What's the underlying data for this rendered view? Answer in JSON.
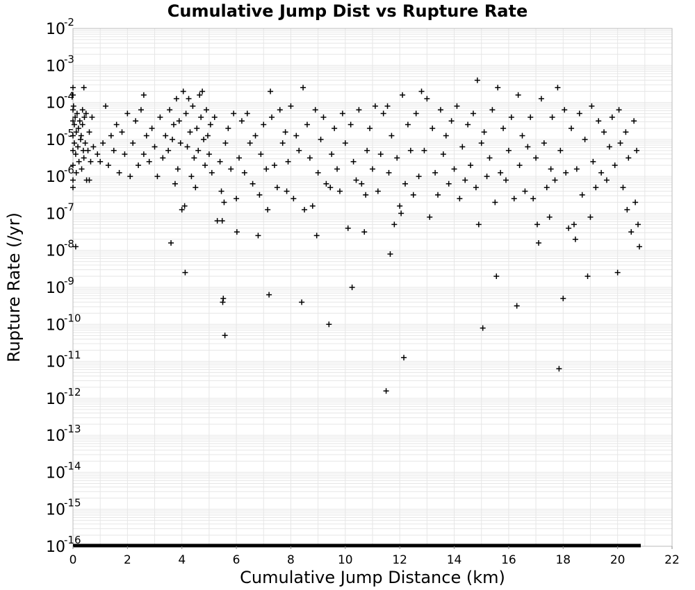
{
  "chart_data": {
    "type": "scatter",
    "title": "Cumulative Jump Dist vs Rupture Rate",
    "xlabel": "Cumulative Jump Distance (km)",
    "ylabel": "Rupture Rate (/yr)",
    "xlim": [
      0,
      22
    ],
    "ylim_log10": [
      -16,
      -2
    ],
    "y_scale": "log",
    "grid": true,
    "legend": "none",
    "marker": "plus",
    "marker_color": "#000000",
    "grid_color": "#e6e6e6",
    "x_ticks": [
      "0",
      "2",
      "4",
      "6",
      "8",
      "10",
      "12",
      "14",
      "16",
      "18",
      "20",
      "22"
    ],
    "y_ticks": [
      {
        "base": "10",
        "exp": "-2"
      },
      {
        "base": "10",
        "exp": "-3"
      },
      {
        "base": "10",
        "exp": "-4"
      },
      {
        "base": "10",
        "exp": "-5"
      },
      {
        "base": "10",
        "exp": "-6"
      },
      {
        "base": "10",
        "exp": "-7"
      },
      {
        "base": "10",
        "exp": "-8"
      },
      {
        "base": "10",
        "exp": "-9"
      },
      {
        "base": "10",
        "exp": "-10"
      },
      {
        "base": "10",
        "exp": "-11"
      },
      {
        "base": "10",
        "exp": "-12"
      },
      {
        "base": "10",
        "exp": "-13"
      },
      {
        "base": "10",
        "exp": "-14"
      },
      {
        "base": "10",
        "exp": "-15"
      },
      {
        "base": "10",
        "exp": "-16"
      }
    ],
    "floor_series": {
      "x_range": [
        0,
        20.8
      ],
      "log10_y": -16,
      "note_type": "dense zero-rate points"
    },
    "points": [
      [
        0.0,
        -3.6
      ],
      [
        0.0,
        -3.8
      ],
      [
        0.0,
        -4.2
      ],
      [
        0.0,
        -4.5
      ],
      [
        0.0,
        -4.9
      ],
      [
        0.0,
        -5.3
      ],
      [
        0.0,
        -5.7
      ],
      [
        0.0,
        -6.1
      ],
      [
        0.0,
        -6.3
      ],
      [
        0.02,
        -4.1
      ],
      [
        0.05,
        -4.6
      ],
      [
        0.05,
        -5.1
      ],
      [
        0.08,
        -4.4
      ],
      [
        0.1,
        -5.4
      ],
      [
        0.12,
        -4.8
      ],
      [
        0.12,
        -5.9
      ],
      [
        0.15,
        -4.3
      ],
      [
        0.18,
        -5.2
      ],
      [
        0.2,
        -4.7
      ],
      [
        0.22,
        -5.6
      ],
      [
        0.25,
        -4.5
      ],
      [
        0.28,
        -5.0
      ],
      [
        0.3,
        -4.9
      ],
      [
        0.32,
        -5.8
      ],
      [
        0.35,
        -4.2
      ],
      [
        0.35,
        -4.6
      ],
      [
        0.38,
        -5.3
      ],
      [
        0.4,
        -3.6
      ],
      [
        0.4,
        -5.5
      ],
      [
        0.42,
        -4.4
      ],
      [
        0.45,
        -5.1
      ],
      [
        0.48,
        -4.3
      ],
      [
        0.5,
        -6.1
      ],
      [
        0.55,
        -5.3
      ],
      [
        0.6,
        -4.8
      ],
      [
        0.6,
        -6.1
      ],
      [
        0.65,
        -5.6
      ],
      [
        0.7,
        -4.4
      ],
      [
        0.75,
        -5.2
      ],
      [
        0.1,
        -7.9
      ],
      [
        0.9,
        -5.4
      ],
      [
        1.0,
        -5.6
      ],
      [
        1.1,
        -5.1
      ],
      [
        1.2,
        -4.1
      ],
      [
        1.3,
        -5.7
      ],
      [
        1.4,
        -4.9
      ],
      [
        1.5,
        -5.3
      ],
      [
        1.6,
        -4.6
      ],
      [
        1.7,
        -5.9
      ],
      [
        1.8,
        -4.8
      ],
      [
        1.9,
        -5.4
      ],
      [
        2.0,
        -4.3
      ],
      [
        2.1,
        -6.0
      ],
      [
        2.2,
        -5.1
      ],
      [
        2.3,
        -4.5
      ],
      [
        2.4,
        -5.7
      ],
      [
        2.5,
        -4.2
      ],
      [
        2.6,
        -5.4
      ],
      [
        2.6,
        -3.8
      ],
      [
        2.7,
        -4.9
      ],
      [
        2.8,
        -5.6
      ],
      [
        2.9,
        -4.7
      ],
      [
        3.0,
        -5.2
      ],
      [
        3.1,
        -6.0
      ],
      [
        3.2,
        -4.4
      ],
      [
        3.3,
        -5.5
      ],
      [
        3.4,
        -4.9
      ],
      [
        3.5,
        -5.3
      ],
      [
        3.55,
        -4.2
      ],
      [
        3.6,
        -7.8
      ],
      [
        3.65,
        -5.0
      ],
      [
        3.7,
        -4.6
      ],
      [
        3.75,
        -6.2
      ],
      [
        3.8,
        -3.9
      ],
      [
        3.85,
        -5.8
      ],
      [
        3.9,
        -4.5
      ],
      [
        3.95,
        -5.1
      ],
      [
        4.0,
        -6.9
      ],
      [
        4.05,
        -3.7
      ],
      [
        4.1,
        -6.8
      ],
      [
        4.12,
        -8.6
      ],
      [
        4.15,
        -4.3
      ],
      [
        4.2,
        -5.2
      ],
      [
        4.25,
        -3.9
      ],
      [
        4.3,
        -4.8
      ],
      [
        4.35,
        -6.0
      ],
      [
        4.4,
        -4.1
      ],
      [
        4.45,
        -5.5
      ],
      [
        4.5,
        -6.3
      ],
      [
        4.55,
        -4.7
      ],
      [
        4.6,
        -5.3
      ],
      [
        4.65,
        -3.8
      ],
      [
        4.7,
        -4.4
      ],
      [
        4.75,
        -3.7
      ],
      [
        4.8,
        -5.0
      ],
      [
        4.85,
        -5.7
      ],
      [
        4.9,
        -4.2
      ],
      [
        4.95,
        -4.9
      ],
      [
        5.0,
        -5.4
      ],
      [
        5.05,
        -4.6
      ],
      [
        5.1,
        -5.9
      ],
      [
        5.2,
        -4.4
      ],
      [
        5.3,
        -7.2
      ],
      [
        5.4,
        -5.6
      ],
      [
        5.45,
        -6.4
      ],
      [
        5.48,
        -7.2
      ],
      [
        5.5,
        -9.4
      ],
      [
        5.52,
        -9.3
      ],
      [
        5.55,
        -6.7
      ],
      [
        5.58,
        -10.3
      ],
      [
        5.6,
        -5.1
      ],
      [
        5.7,
        -4.7
      ],
      [
        5.8,
        -5.8
      ],
      [
        5.9,
        -4.3
      ],
      [
        6.0,
        -6.6
      ],
      [
        6.02,
        -7.5
      ],
      [
        6.1,
        -5.5
      ],
      [
        6.2,
        -4.5
      ],
      [
        6.3,
        -5.9
      ],
      [
        6.4,
        -4.3
      ],
      [
        6.5,
        -5.1
      ],
      [
        6.6,
        -6.2
      ],
      [
        6.7,
        -4.9
      ],
      [
        6.8,
        -7.6
      ],
      [
        6.85,
        -6.5
      ],
      [
        6.9,
        -5.4
      ],
      [
        7.0,
        -4.6
      ],
      [
        7.1,
        -5.8
      ],
      [
        7.15,
        -6.9
      ],
      [
        7.2,
        -9.2
      ],
      [
        7.25,
        -3.7
      ],
      [
        7.3,
        -4.4
      ],
      [
        7.4,
        -5.7
      ],
      [
        7.5,
        -6.3
      ],
      [
        7.6,
        -4.2
      ],
      [
        7.7,
        -5.1
      ],
      [
        7.8,
        -4.8
      ],
      [
        7.85,
        -6.4
      ],
      [
        7.9,
        -5.6
      ],
      [
        8.0,
        -4.1
      ],
      [
        8.1,
        -6.6
      ],
      [
        8.2,
        -4.9
      ],
      [
        8.3,
        -5.3
      ],
      [
        8.4,
        -9.4
      ],
      [
        8.45,
        -3.6
      ],
      [
        8.5,
        -6.9
      ],
      [
        8.6,
        -4.6
      ],
      [
        8.7,
        -5.5
      ],
      [
        8.8,
        -6.8
      ],
      [
        8.9,
        -4.2
      ],
      [
        8.95,
        -7.6
      ],
      [
        9.0,
        -5.9
      ],
      [
        9.1,
        -5.0
      ],
      [
        9.2,
        -4.4
      ],
      [
        9.3,
        -6.2
      ],
      [
        9.4,
        -10.0
      ],
      [
        9.45,
        -6.3
      ],
      [
        9.5,
        -5.4
      ],
      [
        9.6,
        -4.7
      ],
      [
        9.7,
        -5.8
      ],
      [
        9.8,
        -6.4
      ],
      [
        9.9,
        -4.3
      ],
      [
        10.0,
        -5.1
      ],
      [
        10.1,
        -7.4
      ],
      [
        10.2,
        -4.6
      ],
      [
        10.25,
        -9.0
      ],
      [
        10.3,
        -5.6
      ],
      [
        10.4,
        -6.1
      ],
      [
        10.5,
        -4.2
      ],
      [
        10.6,
        -6.2
      ],
      [
        10.7,
        -7.5
      ],
      [
        10.75,
        -6.5
      ],
      [
        10.8,
        -5.3
      ],
      [
        10.9,
        -4.7
      ],
      [
        11.0,
        -5.8
      ],
      [
        11.1,
        -4.1
      ],
      [
        11.2,
        -6.4
      ],
      [
        11.3,
        -5.4
      ],
      [
        11.4,
        -4.3
      ],
      [
        11.5,
        -11.8
      ],
      [
        11.55,
        -4.1
      ],
      [
        11.6,
        -5.9
      ],
      [
        11.65,
        -8.1
      ],
      [
        11.7,
        -4.9
      ],
      [
        11.8,
        -7.3
      ],
      [
        11.9,
        -5.5
      ],
      [
        12.0,
        -6.8
      ],
      [
        12.05,
        -7.0
      ],
      [
        12.1,
        -3.8
      ],
      [
        12.15,
        -10.9
      ],
      [
        12.2,
        -6.2
      ],
      [
        12.3,
        -4.6
      ],
      [
        12.4,
        -5.3
      ],
      [
        12.5,
        -6.5
      ],
      [
        12.6,
        -4.3
      ],
      [
        12.7,
        -6.0
      ],
      [
        12.8,
        -3.7
      ],
      [
        12.9,
        -5.3
      ],
      [
        13.0,
        -3.9
      ],
      [
        13.1,
        -7.1
      ],
      [
        13.2,
        -4.7
      ],
      [
        13.3,
        -5.9
      ],
      [
        13.4,
        -6.5
      ],
      [
        13.5,
        -4.2
      ],
      [
        13.6,
        -5.4
      ],
      [
        13.7,
        -4.9
      ],
      [
        13.8,
        -6.2
      ],
      [
        13.9,
        -4.5
      ],
      [
        14.0,
        -5.8
      ],
      [
        14.1,
        -4.1
      ],
      [
        14.2,
        -6.6
      ],
      [
        14.3,
        -5.2
      ],
      [
        14.4,
        -6.1
      ],
      [
        14.5,
        -4.6
      ],
      [
        14.6,
        -5.7
      ],
      [
        14.7,
        -4.3
      ],
      [
        14.8,
        -6.3
      ],
      [
        14.85,
        -3.4
      ],
      [
        14.9,
        -7.3
      ],
      [
        15.0,
        -5.1
      ],
      [
        15.05,
        -10.1
      ],
      [
        15.1,
        -4.8
      ],
      [
        15.2,
        -6.0
      ],
      [
        15.3,
        -5.5
      ],
      [
        15.4,
        -4.2
      ],
      [
        15.5,
        -6.7
      ],
      [
        15.55,
        -8.7
      ],
      [
        15.6,
        -3.6
      ],
      [
        15.7,
        -5.9
      ],
      [
        15.8,
        -4.7
      ],
      [
        15.9,
        -6.1
      ],
      [
        16.0,
        -5.3
      ],
      [
        16.1,
        -4.4
      ],
      [
        16.2,
        -6.6
      ],
      [
        16.3,
        -9.5
      ],
      [
        16.35,
        -3.8
      ],
      [
        16.4,
        -5.7
      ],
      [
        16.5,
        -4.9
      ],
      [
        16.6,
        -6.4
      ],
      [
        16.7,
        -5.2
      ],
      [
        16.8,
        -4.4
      ],
      [
        16.9,
        -6.6
      ],
      [
        17.0,
        -5.5
      ],
      [
        17.05,
        -7.3
      ],
      [
        17.1,
        -7.8
      ],
      [
        17.2,
        -3.9
      ],
      [
        17.3,
        -5.1
      ],
      [
        17.4,
        -6.3
      ],
      [
        17.5,
        -7.1
      ],
      [
        17.55,
        -5.8
      ],
      [
        17.6,
        -4.4
      ],
      [
        17.7,
        -6.1
      ],
      [
        17.8,
        -3.6
      ],
      [
        17.85,
        -11.2
      ],
      [
        17.9,
        -5.3
      ],
      [
        18.0,
        -9.3
      ],
      [
        18.05,
        -4.2
      ],
      [
        18.1,
        -5.9
      ],
      [
        18.2,
        -7.4
      ],
      [
        18.3,
        -4.7
      ],
      [
        18.4,
        -7.3
      ],
      [
        18.45,
        -7.7
      ],
      [
        18.5,
        -5.8
      ],
      [
        18.6,
        -4.3
      ],
      [
        18.7,
        -6.5
      ],
      [
        18.8,
        -5.0
      ],
      [
        18.9,
        -8.7
      ],
      [
        19.0,
        -7.1
      ],
      [
        19.05,
        -4.1
      ],
      [
        19.1,
        -5.6
      ],
      [
        19.2,
        -6.3
      ],
      [
        19.3,
        -4.5
      ],
      [
        19.4,
        -5.9
      ],
      [
        19.5,
        -4.8
      ],
      [
        19.6,
        -6.1
      ],
      [
        19.7,
        -5.2
      ],
      [
        19.8,
        -4.4
      ],
      [
        19.9,
        -5.7
      ],
      [
        20.0,
        -8.6
      ],
      [
        20.05,
        -4.2
      ],
      [
        20.1,
        -5.1
      ],
      [
        20.2,
        -6.3
      ],
      [
        20.3,
        -4.8
      ],
      [
        20.35,
        -6.9
      ],
      [
        20.4,
        -5.5
      ],
      [
        20.5,
        -7.5
      ],
      [
        20.6,
        -4.5
      ],
      [
        20.65,
        -6.7
      ],
      [
        20.7,
        -5.3
      ],
      [
        20.75,
        -7.3
      ],
      [
        20.8,
        -7.9
      ]
    ]
  }
}
